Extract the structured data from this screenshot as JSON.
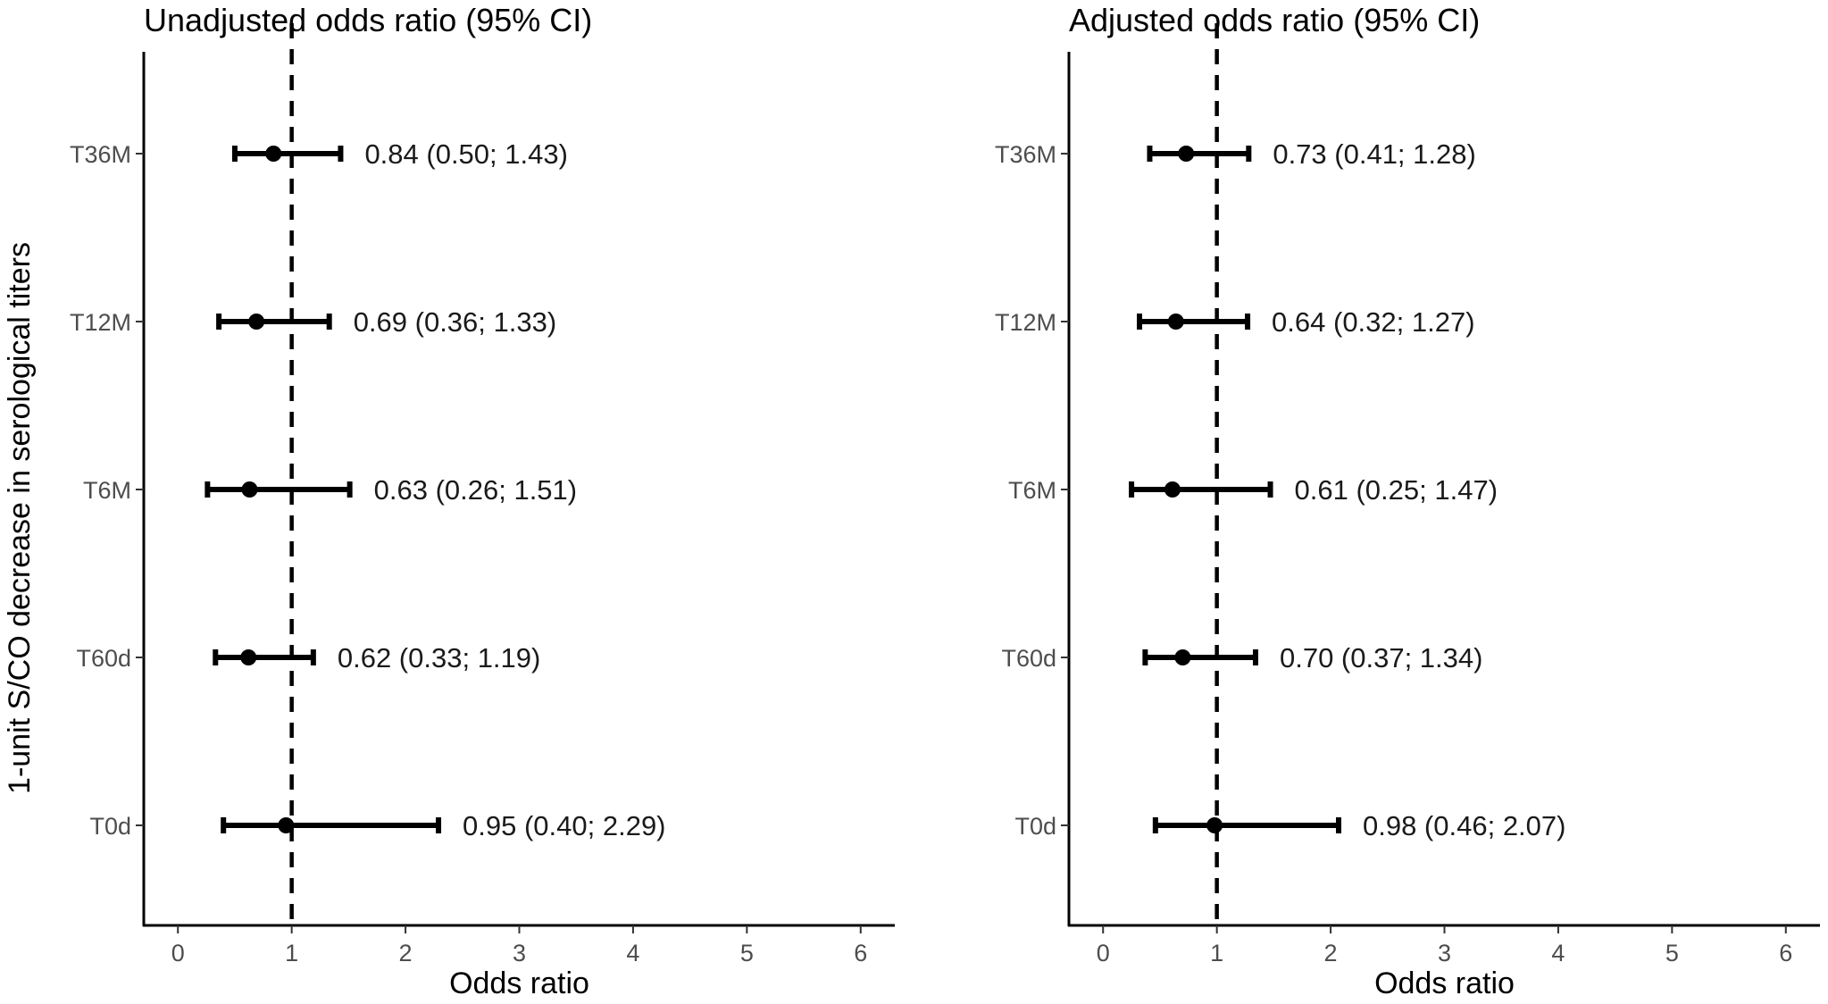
{
  "ylabel": "1-unit S/CO decrease in serological titers",
  "chart_data": [
    {
      "type": "forest",
      "title": "Unadjusted odds ratio (95% CI)",
      "xlabel": "Odds ratio",
      "xlim": [
        -0.3,
        6.3
      ],
      "xticks": [
        0,
        1,
        2,
        3,
        4,
        5,
        6
      ],
      "reference_line": 1,
      "categories": [
        "T36M",
        "T12M",
        "T6M",
        "T60d",
        "T0d"
      ],
      "or": [
        0.84,
        0.69,
        0.63,
        0.62,
        0.95
      ],
      "lower": [
        0.5,
        0.36,
        0.26,
        0.33,
        0.4
      ],
      "upper": [
        1.43,
        1.33,
        1.51,
        1.19,
        2.29
      ],
      "labels": [
        "0.84 (0.50; 1.43)",
        "0.69 (0.36; 1.33)",
        "0.63 (0.26; 1.51)",
        "0.62 (0.33; 1.19)",
        "0.95 (0.40; 2.29)"
      ]
    },
    {
      "type": "forest",
      "title": "Adjusted odds ratio (95% CI)",
      "xlabel": "Odds ratio",
      "xlim": [
        -0.3,
        6.3
      ],
      "xticks": [
        0,
        1,
        2,
        3,
        4,
        5,
        6
      ],
      "reference_line": 1,
      "categories": [
        "T36M",
        "T12M",
        "T6M",
        "T60d",
        "T0d"
      ],
      "or": [
        0.73,
        0.64,
        0.61,
        0.7,
        0.98
      ],
      "lower": [
        0.41,
        0.32,
        0.25,
        0.37,
        0.46
      ],
      "upper": [
        1.28,
        1.27,
        1.47,
        1.34,
        2.07
      ],
      "labels": [
        "0.73 (0.41; 1.28)",
        "0.64 (0.32; 1.27)",
        "0.61 (0.25; 1.47)",
        "0.70 (0.37; 1.34)",
        "0.98 (0.46; 2.07)"
      ]
    }
  ]
}
